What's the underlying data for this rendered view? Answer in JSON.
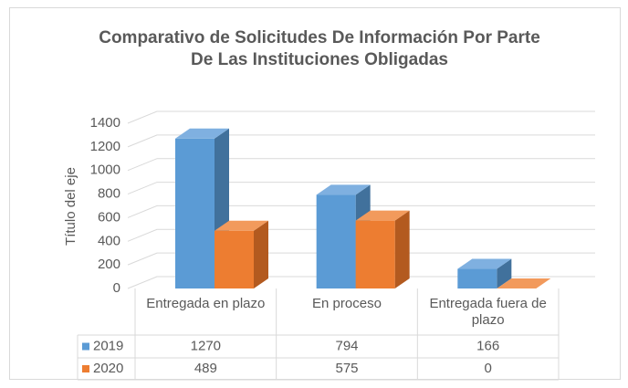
{
  "chart_data": {
    "type": "bar3d",
    "title": "Comparativo de Solicitudes De Información Por Parte De Las Instituciones Obligadas",
    "y_axis_label": "Título del eje",
    "categories": [
      "Entregada en plazo",
      "En proceso",
      "Entregada fuera de plazo"
    ],
    "series": [
      {
        "name": "2019",
        "color": "#5b9bd5",
        "side": "#41719c",
        "top": "#7fb0e0",
        "values": [
          1270,
          794,
          166
        ]
      },
      {
        "name": "2020",
        "color": "#ed7d31",
        "side": "#b35a1f",
        "top": "#f29a5c",
        "values": [
          489,
          575,
          0
        ]
      }
    ],
    "ylim": [
      0,
      1400
    ],
    "yticks": [
      0,
      200,
      400,
      600,
      800,
      1000,
      1200,
      1400
    ],
    "grid": true,
    "data_table": true
  }
}
